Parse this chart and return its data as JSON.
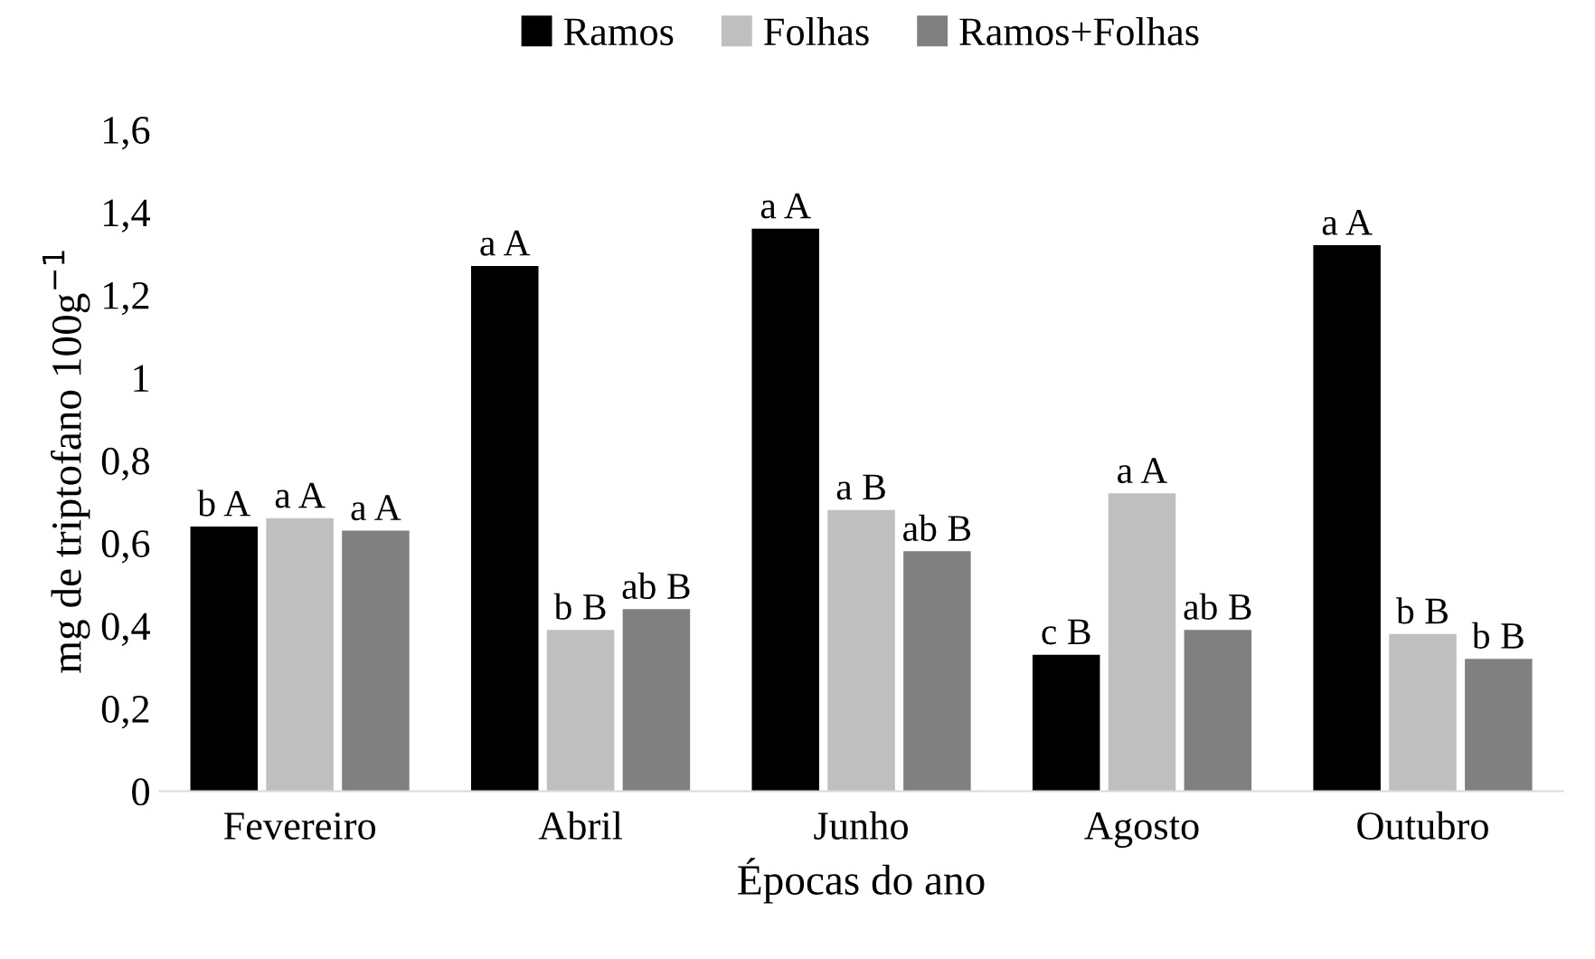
{
  "chart_data": {
    "type": "bar",
    "xlabel": "Épocas do ano",
    "ylabel": "mg de triptofano 100g$^{−1}$",
    "categories": [
      "Fevereiro",
      "Abril",
      "Junho",
      "Agosto",
      "Outubro"
    ],
    "series": [
      {
        "name": "Ramos",
        "color": "#000000",
        "values": [
          0.64,
          1.27,
          1.36,
          0.33,
          1.32
        ],
        "value_labels": [
          "b A",
          "a A",
          "a A",
          "c B",
          "a A"
        ]
      },
      {
        "name": "Folhas",
        "color": "#bfbfbf",
        "values": [
          0.66,
          0.39,
          0.68,
          0.72,
          0.38
        ],
        "value_labels": [
          "a A",
          "b B",
          "a B",
          "a A",
          "b B"
        ]
      },
      {
        "name": "Ramos+Folhas",
        "color": "#808080",
        "values": [
          0.63,
          0.44,
          0.58,
          0.39,
          0.32
        ],
        "value_labels": [
          "a A",
          "ab B",
          "ab B",
          "ab B",
          "b B"
        ]
      }
    ],
    "ylim": [
      0,
      1.6
    ],
    "yticks": [
      {
        "value": 0,
        "label": "0"
      },
      {
        "value": 0.2,
        "label": "0,2"
      },
      {
        "value": 0.4,
        "label": "0,4"
      },
      {
        "value": 0.6,
        "label": "0,6"
      },
      {
        "value": 0.8,
        "label": "0,8"
      },
      {
        "value": 1,
        "label": "1"
      },
      {
        "value": 1.2,
        "label": "1,2"
      },
      {
        "value": 1.4,
        "label": "1,4"
      },
      {
        "value": 1.6,
        "label": "1,6"
      }
    ],
    "grid": false,
    "legend": "top"
  }
}
